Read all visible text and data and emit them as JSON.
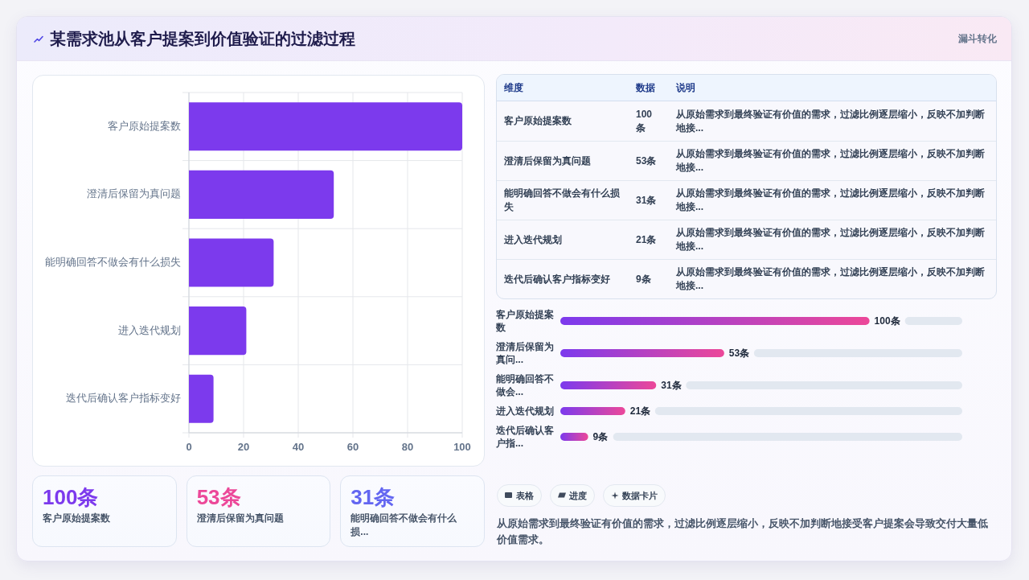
{
  "chart_data": [
    {
      "type": "other",
      "title": "某需求池从客户提案到价值验证的过滤过程",
      "subtitle": "漏斗转化"
    },
    {
      "type": "bar",
      "orientation": "horizontal",
      "categories": [
        "客户原始提案数",
        "澄清后保留为真问题",
        "能明确回答不做会有什么损失",
        "进入迭代规划",
        "迭代后确认客户指标变好"
      ],
      "values": [
        100,
        53,
        31,
        21,
        9
      ],
      "color": "#7c3aed",
      "xlim": [
        0,
        100
      ],
      "xticks": [
        0,
        20,
        40,
        60,
        80,
        100
      ],
      "grid": true
    },
    {
      "type": "other",
      "categories": [
        "客户原始提案数",
        "澄清后保留为真问题",
        "能明确回答不做会有什么损失",
        "进入迭代规划",
        "迭代后确认客户指标变好"
      ],
      "value_labels": [
        "100条",
        "53条",
        "31条",
        "21条",
        "9条"
      ],
      "annotations": [
        "维度",
        "数据",
        "说明",
        "从原始需求到最终验证有价值的需求，过滤比例逐层缩小，反映不加判断地接...",
        "从原始需求到最终验证有价值的需求，过滤比例逐层缩小，反映不加判断地接...",
        "从原始需求到最终验证有价值的需求，过滤比例逐层缩小，反映不加判断地接...",
        "从原始需求到最终验证有价值的需求，过滤比例逐层缩小，反映不加判断地接...",
        "从原始需求到最终验证有价值的需求，过滤比例逐层缩小，反映不加判断地接..."
      ]
    },
    {
      "type": "bar",
      "orientation": "horizontal",
      "categories": [
        "客户原始提案数",
        "澄清后保留为真问...",
        "能明确回答不做会...",
        "进入迭代规划",
        "迭代后确认客户指..."
      ],
      "values": [
        100,
        53,
        31,
        21,
        9
      ],
      "value_labels": [
        "100条",
        "53条",
        "31条",
        "21条",
        "9条"
      ],
      "color": "#7c3aed"
    },
    {
      "type": "other",
      "categories": [
        "客户原始提案数",
        "澄清后保留为真问题",
        "能明确回答不做会有什么损..."
      ],
      "value_labels": [
        "100条",
        "53条",
        "31条"
      ]
    },
    {
      "type": "other",
      "categories": [
        "表格",
        "进度",
        "数据卡片"
      ],
      "annotations": [
        "从原始需求到最终验证有价值的需求，过滤比例逐层缩小，反映不加判断地接受客户提案会导致交付大量低价值需求。"
      ]
    }
  ]
}
